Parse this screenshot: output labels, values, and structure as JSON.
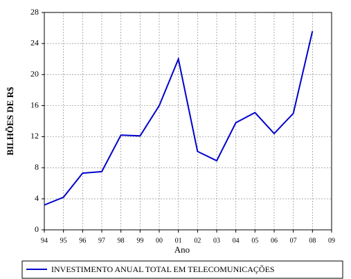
{
  "chart_data": {
    "type": "line",
    "x_label": "Ano",
    "y_label": "BILHÕES DE R$",
    "categories": [
      "94",
      "95",
      "96",
      "97",
      "98",
      "99",
      "00",
      "01",
      "02",
      "03",
      "04",
      "05",
      "06",
      "07",
      "08",
      "09"
    ],
    "series": [
      {
        "name": "INVESTIMENTO ANUAL TOTAL EM TELECOMUNICAÇÕES",
        "color": "#0000cc",
        "values": [
          3.2,
          4.2,
          7.3,
          7.5,
          12.2,
          12.1,
          16.0,
          22.0,
          10.1,
          8.9,
          13.8,
          15.1,
          12.4,
          15.0,
          25.6,
          null
        ]
      }
    ],
    "ylim": [
      0,
      28
    ],
    "yticks": [
      0,
      4,
      8,
      12,
      16,
      20,
      24,
      28
    ],
    "grid": true,
    "legend": "bottom"
  }
}
